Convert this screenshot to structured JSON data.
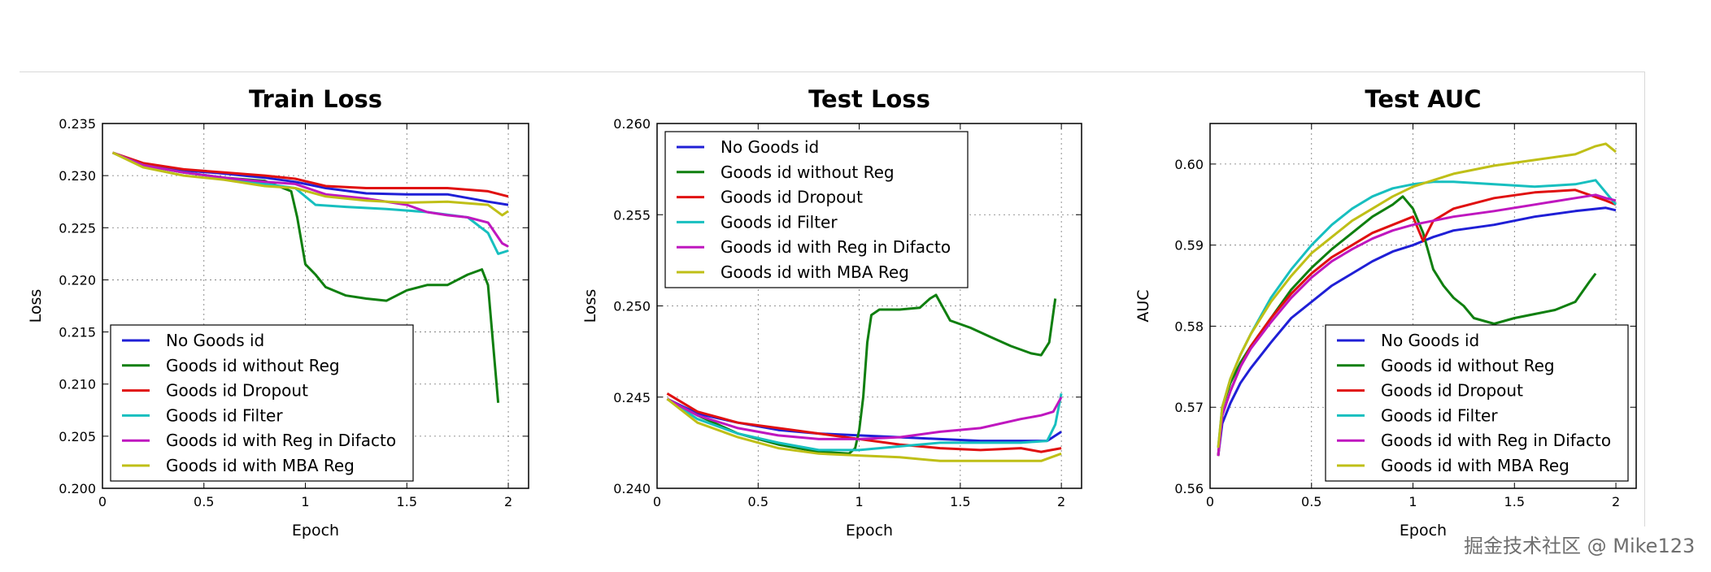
{
  "watermark": "掘金技术社区 @ Mike123",
  "colors": {
    "No Goods id": "#1f1fd6",
    "Goods id without Reg": "#0f7f0f",
    "Goods id Dropout": "#e01010",
    "Goods id Filter": "#17bfbf",
    "Goods id with Reg in Difacto": "#bf17bf",
    "Goods id with MBA Reg": "#bfbf17"
  },
  "chart_data": [
    {
      "type": "line",
      "title": "Train Loss",
      "xlabel": "Epoch",
      "ylabel": "Loss",
      "xlim": [
        0,
        2.1
      ],
      "ylim": [
        0.2,
        0.235
      ],
      "xticks": [
        "0",
        "0.5",
        "1",
        "1.5",
        "2"
      ],
      "yticks": [
        "0.200",
        "0.205",
        "0.210",
        "0.215",
        "0.220",
        "0.225",
        "0.230",
        "0.235"
      ],
      "grid": true,
      "legend_loc": "lower-left",
      "series": [
        {
          "name": "No Goods id",
          "x": [
            0.05,
            0.2,
            0.4,
            0.6,
            0.8,
            0.95,
            1.1,
            1.3,
            1.5,
            1.7,
            1.9,
            2.0
          ],
          "y": [
            0.2322,
            0.231,
            0.2305,
            0.2302,
            0.2298,
            0.2294,
            0.2288,
            0.2283,
            0.2282,
            0.2282,
            0.2275,
            0.2272
          ]
        },
        {
          "name": "Goods id without Reg",
          "x": [
            0.05,
            0.2,
            0.4,
            0.6,
            0.8,
            0.93,
            0.96,
            1.0,
            1.05,
            1.1,
            1.2,
            1.3,
            1.4,
            1.5,
            1.6,
            1.7,
            1.8,
            1.87,
            1.9,
            1.95
          ],
          "y": [
            0.2322,
            0.231,
            0.2303,
            0.2298,
            0.2295,
            0.2285,
            0.226,
            0.2215,
            0.2205,
            0.2193,
            0.2185,
            0.2182,
            0.218,
            0.219,
            0.2195,
            0.2195,
            0.2205,
            0.221,
            0.2195,
            0.2082
          ]
        },
        {
          "name": "Goods id Dropout",
          "x": [
            0.05,
            0.2,
            0.4,
            0.6,
            0.8,
            0.95,
            1.1,
            1.3,
            1.5,
            1.7,
            1.9,
            2.0
          ],
          "y": [
            0.2322,
            0.2312,
            0.2306,
            0.2303,
            0.23,
            0.2297,
            0.229,
            0.2288,
            0.2288,
            0.2288,
            0.2285,
            0.228
          ]
        },
        {
          "name": "Goods id Filter",
          "x": [
            0.05,
            0.2,
            0.4,
            0.6,
            0.8,
            0.95,
            1.05,
            1.2,
            1.4,
            1.6,
            1.8,
            1.9,
            1.95,
            2.0
          ],
          "y": [
            0.2322,
            0.231,
            0.2303,
            0.2298,
            0.2292,
            0.2288,
            0.2272,
            0.227,
            0.2268,
            0.2265,
            0.226,
            0.2245,
            0.2225,
            0.2228
          ]
        },
        {
          "name": "Goods id with Reg in Difacto",
          "x": [
            0.05,
            0.2,
            0.4,
            0.6,
            0.8,
            0.95,
            1.1,
            1.3,
            1.5,
            1.6,
            1.7,
            1.8,
            1.9,
            1.97,
            2.0
          ],
          "y": [
            0.2322,
            0.231,
            0.2303,
            0.2298,
            0.2294,
            0.2292,
            0.2282,
            0.2278,
            0.2272,
            0.2265,
            0.2262,
            0.226,
            0.2255,
            0.2235,
            0.2232
          ]
        },
        {
          "name": "Goods id with MBA Reg",
          "x": [
            0.05,
            0.2,
            0.4,
            0.6,
            0.8,
            0.95,
            1.1,
            1.3,
            1.5,
            1.7,
            1.9,
            1.97,
            2.0
          ],
          "y": [
            0.2322,
            0.2308,
            0.23,
            0.2296,
            0.229,
            0.2288,
            0.228,
            0.2276,
            0.2274,
            0.2275,
            0.2272,
            0.2262,
            0.2266
          ]
        }
      ]
    },
    {
      "type": "line",
      "title": "Test Loss",
      "xlabel": "Epoch",
      "ylabel": "Loss",
      "xlim": [
        0,
        2.1
      ],
      "ylim": [
        0.24,
        0.26
      ],
      "xticks": [
        "0",
        "0.5",
        "1",
        "1.5",
        "2"
      ],
      "yticks": [
        "0.240",
        "0.245",
        "0.250",
        "0.255",
        "0.260"
      ],
      "grid": true,
      "legend_loc": "upper-left",
      "series": [
        {
          "name": "No Goods id",
          "x": [
            0.05,
            0.2,
            0.4,
            0.6,
            0.8,
            1.0,
            1.2,
            1.4,
            1.6,
            1.8,
            1.93,
            2.0
          ],
          "y": [
            0.2449,
            0.2441,
            0.2436,
            0.2432,
            0.243,
            0.2429,
            0.2428,
            0.2427,
            0.2426,
            0.2426,
            0.2426,
            0.2431
          ]
        },
        {
          "name": "Goods id without Reg",
          "x": [
            0.05,
            0.2,
            0.4,
            0.6,
            0.8,
            0.95,
            0.98,
            1.0,
            1.02,
            1.04,
            1.06,
            1.1,
            1.2,
            1.3,
            1.35,
            1.38,
            1.45,
            1.55,
            1.65,
            1.75,
            1.85,
            1.9,
            1.94,
            1.97
          ],
          "y": [
            0.2449,
            0.244,
            0.243,
            0.2424,
            0.242,
            0.2419,
            0.2422,
            0.2432,
            0.245,
            0.248,
            0.2495,
            0.2498,
            0.2498,
            0.2499,
            0.2504,
            0.2506,
            0.2492,
            0.2488,
            0.2483,
            0.2478,
            0.2474,
            0.2473,
            0.248,
            0.2504
          ]
        },
        {
          "name": "Goods id Dropout",
          "x": [
            0.05,
            0.2,
            0.4,
            0.6,
            0.8,
            1.0,
            1.2,
            1.4,
            1.6,
            1.8,
            1.9,
            2.0
          ],
          "y": [
            0.2452,
            0.2442,
            0.2436,
            0.2433,
            0.243,
            0.2427,
            0.2424,
            0.2422,
            0.2421,
            0.2422,
            0.242,
            0.2422
          ]
        },
        {
          "name": "Goods id Filter",
          "x": [
            0.05,
            0.2,
            0.4,
            0.6,
            0.8,
            1.0,
            1.2,
            1.4,
            1.6,
            1.8,
            1.93,
            1.97,
            2.0
          ],
          "y": [
            0.2449,
            0.2438,
            0.243,
            0.2425,
            0.2421,
            0.2421,
            0.2423,
            0.2425,
            0.2425,
            0.2425,
            0.2426,
            0.2435,
            0.2452
          ]
        },
        {
          "name": "Goods id with Reg in Difacto",
          "x": [
            0.05,
            0.2,
            0.4,
            0.6,
            0.8,
            1.0,
            1.2,
            1.4,
            1.6,
            1.8,
            1.9,
            1.96,
            2.0
          ],
          "y": [
            0.2449,
            0.244,
            0.2433,
            0.2429,
            0.2427,
            0.2427,
            0.2428,
            0.2431,
            0.2433,
            0.2438,
            0.244,
            0.2442,
            0.245
          ]
        },
        {
          "name": "Goods id with MBA Reg",
          "x": [
            0.05,
            0.2,
            0.4,
            0.6,
            0.8,
            1.0,
            1.2,
            1.4,
            1.6,
            1.8,
            1.9,
            2.0
          ],
          "y": [
            0.2449,
            0.2436,
            0.2428,
            0.2422,
            0.2419,
            0.2418,
            0.2417,
            0.2415,
            0.2415,
            0.2415,
            0.2415,
            0.2419
          ]
        }
      ]
    },
    {
      "type": "line",
      "title": "Test    AUC",
      "xlabel": "Epoch",
      "ylabel": "AUC",
      "xlim": [
        0,
        2.1
      ],
      "ylim": [
        0.56,
        0.605
      ],
      "xticks": [
        "0",
        "0.5",
        "1",
        "1.5",
        "2"
      ],
      "yticks": [
        "0.56",
        "0.57",
        "0.58",
        "0.59",
        "0.60"
      ],
      "grid": true,
      "legend_loc": "lower-right",
      "series": [
        {
          "name": "No Goods id",
          "x": [
            0.04,
            0.06,
            0.1,
            0.15,
            0.2,
            0.3,
            0.4,
            0.5,
            0.6,
            0.7,
            0.8,
            0.9,
            1.0,
            1.1,
            1.2,
            1.4,
            1.6,
            1.8,
            1.95,
            2.0
          ],
          "y": [
            0.564,
            0.568,
            0.5705,
            0.573,
            0.5748,
            0.578,
            0.581,
            0.583,
            0.585,
            0.5865,
            0.588,
            0.5892,
            0.59,
            0.591,
            0.5918,
            0.5925,
            0.5935,
            0.5942,
            0.5946,
            0.5943
          ]
        },
        {
          "name": "Goods id without Reg",
          "x": [
            0.04,
            0.06,
            0.1,
            0.15,
            0.2,
            0.3,
            0.4,
            0.5,
            0.6,
            0.7,
            0.8,
            0.9,
            0.95,
            1.0,
            1.05,
            1.1,
            1.15,
            1.2,
            1.25,
            1.3,
            1.4,
            1.5,
            1.6,
            1.7,
            1.8,
            1.87,
            1.9
          ],
          "y": [
            0.564,
            0.57,
            0.573,
            0.5755,
            0.5775,
            0.581,
            0.5845,
            0.5872,
            0.5895,
            0.5915,
            0.5935,
            0.595,
            0.596,
            0.5945,
            0.5915,
            0.587,
            0.585,
            0.5835,
            0.5825,
            0.581,
            0.5803,
            0.581,
            0.5815,
            0.582,
            0.583,
            0.5855,
            0.5865
          ]
        },
        {
          "name": "Goods id Dropout",
          "x": [
            0.04,
            0.06,
            0.1,
            0.15,
            0.2,
            0.3,
            0.4,
            0.5,
            0.6,
            0.7,
            0.8,
            0.9,
            1.0,
            1.05,
            1.1,
            1.2,
            1.4,
            1.6,
            1.8,
            1.95,
            2.0
          ],
          "y": [
            0.564,
            0.569,
            0.572,
            0.575,
            0.5775,
            0.581,
            0.584,
            0.5865,
            0.5885,
            0.59,
            0.5915,
            0.5925,
            0.5935,
            0.5905,
            0.593,
            0.5945,
            0.5958,
            0.5965,
            0.5968,
            0.5955,
            0.595
          ]
        },
        {
          "name": "Goods id Filter",
          "x": [
            0.04,
            0.06,
            0.1,
            0.15,
            0.2,
            0.3,
            0.4,
            0.5,
            0.6,
            0.7,
            0.8,
            0.9,
            1.0,
            1.1,
            1.2,
            1.4,
            1.6,
            1.8,
            1.9,
            1.95,
            2.0
          ],
          "y": [
            0.565,
            0.57,
            0.5735,
            0.5765,
            0.579,
            0.5835,
            0.587,
            0.59,
            0.5925,
            0.5945,
            0.596,
            0.597,
            0.5975,
            0.5978,
            0.5978,
            0.5975,
            0.5972,
            0.5975,
            0.598,
            0.5965,
            0.595
          ]
        },
        {
          "name": "Goods id with Reg in Difacto",
          "x": [
            0.04,
            0.06,
            0.1,
            0.15,
            0.2,
            0.3,
            0.4,
            0.5,
            0.6,
            0.7,
            0.8,
            0.9,
            1.0,
            1.1,
            1.2,
            1.4,
            1.6,
            1.8,
            1.9,
            1.95,
            2.0
          ],
          "y": [
            0.564,
            0.569,
            0.572,
            0.575,
            0.5772,
            0.5805,
            0.5835,
            0.586,
            0.588,
            0.5895,
            0.5908,
            0.5918,
            0.5925,
            0.593,
            0.5935,
            0.5942,
            0.595,
            0.5958,
            0.5962,
            0.5958,
            0.5955
          ]
        },
        {
          "name": "Goods id with MBA Reg",
          "x": [
            0.04,
            0.06,
            0.1,
            0.15,
            0.2,
            0.3,
            0.4,
            0.5,
            0.6,
            0.7,
            0.8,
            0.9,
            1.0,
            1.1,
            1.2,
            1.4,
            1.6,
            1.8,
            1.9,
            1.95,
            2.0
          ],
          "y": [
            0.565,
            0.57,
            0.5735,
            0.5765,
            0.579,
            0.583,
            0.5862,
            0.589,
            0.591,
            0.593,
            0.5945,
            0.596,
            0.5972,
            0.598,
            0.5988,
            0.5998,
            0.6005,
            0.6012,
            0.6022,
            0.6025,
            0.6015
          ]
        }
      ]
    }
  ]
}
